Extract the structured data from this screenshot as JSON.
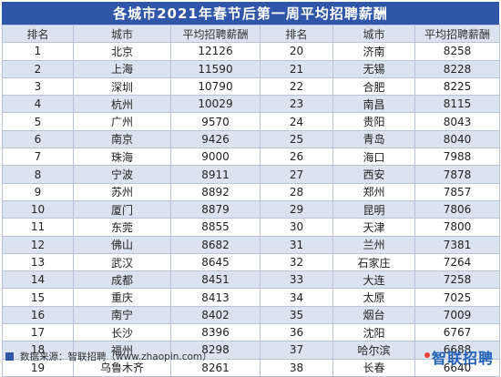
{
  "title": "各城市2021年春节后第一周平均招聘薪酬",
  "columns": [
    "排名",
    "城市",
    "平均招聘薪酬",
    "排名",
    "城市",
    "平均招聘薪酬"
  ],
  "rows": [
    [
      [
        "1",
        "北京",
        "12126"
      ],
      [
        "20",
        "济南",
        "8258"
      ]
    ],
    [
      [
        "2",
        "上海",
        "11590"
      ],
      [
        "21",
        "无锡",
        "8228"
      ]
    ],
    [
      [
        "3",
        "深圳",
        "10790"
      ],
      [
        "22",
        "合肥",
        "8225"
      ]
    ],
    [
      [
        "4",
        "杭州",
        "10029"
      ],
      [
        "23",
        "南昌",
        "8115"
      ]
    ],
    [
      [
        "5",
        "广州",
        "9570"
      ],
      [
        "24",
        "贵阳",
        "8043"
      ]
    ],
    [
      [
        "6",
        "南京",
        "9426"
      ],
      [
        "25",
        "青岛",
        "8040"
      ]
    ],
    [
      [
        "7",
        "珠海",
        "9000"
      ],
      [
        "26",
        "海口",
        "7988"
      ]
    ],
    [
      [
        "8",
        "宁波",
        "8911"
      ],
      [
        "27",
        "西安",
        "7878"
      ]
    ],
    [
      [
        "9",
        "苏州",
        "8892"
      ],
      [
        "28",
        "郑州",
        "7857"
      ]
    ],
    [
      [
        "10",
        "厦门",
        "8879"
      ],
      [
        "29",
        "昆明",
        "7806"
      ]
    ],
    [
      [
        "11",
        "东莞",
        "8855"
      ],
      [
        "30",
        "天津",
        "7800"
      ]
    ],
    [
      [
        "12",
        "佛山",
        "8682"
      ],
      [
        "31",
        "兰州",
        "7381"
      ]
    ],
    [
      [
        "13",
        "武汉",
        "8645"
      ],
      [
        "32",
        "石家庄",
        "7264"
      ]
    ],
    [
      [
        "14",
        "成都",
        "8451"
      ],
      [
        "33",
        "大连",
        "7258"
      ]
    ],
    [
      [
        "15",
        "重庆",
        "8413"
      ],
      [
        "34",
        "太原",
        "7025"
      ]
    ],
    [
      [
        "16",
        "南宁",
        "8402"
      ],
      [
        "35",
        "烟台",
        "7009"
      ]
    ],
    [
      [
        "17",
        "长沙",
        "8396"
      ],
      [
        "36",
        "沈阳",
        "6767"
      ]
    ],
    [
      [
        "18",
        "福州",
        "8298"
      ],
      [
        "37",
        "哈尔滨",
        "6688"
      ]
    ],
    [
      [
        "19",
        "乌鲁木齐",
        "8261"
      ],
      [
        "38",
        "长春",
        "6640"
      ]
    ]
  ],
  "footer": {
    "source": "数据来源：智联招聘（www.zhaopin.com）",
    "brand": "智联招聘"
  },
  "colors": {
    "header_band": "#2f56a8",
    "stripe": "#dbe3f1",
    "brand": "#1f5fb8"
  }
}
